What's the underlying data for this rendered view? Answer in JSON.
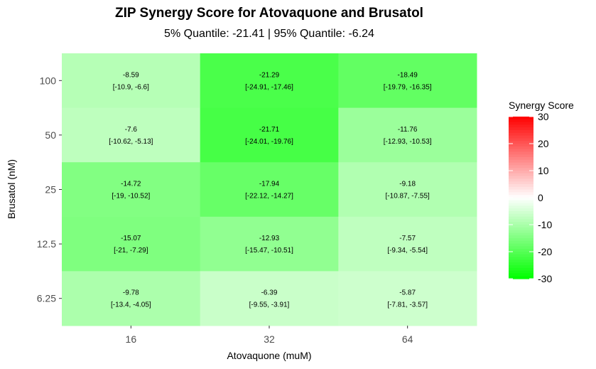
{
  "chart_data": {
    "type": "heatmap",
    "title": "ZIP Synergy Score for Atovaquone and Brusatol",
    "subtitle": "5% Quantile: -21.41 | 95% Quantile: -6.24",
    "xlabel": "Atovaquone (muM)",
    "ylabel": "Brusatol (nM)",
    "x_categories": [
      "16",
      "32",
      "64"
    ],
    "y_categories": [
      "100",
      "50",
      "25",
      "12.5",
      "6.25"
    ],
    "cells": [
      {
        "x": "16",
        "y": "100",
        "value": -8.59,
        "value_label": "-8.59",
        "ci_label": "[-10.9, -6.6]"
      },
      {
        "x": "32",
        "y": "100",
        "value": -21.29,
        "value_label": "-21.29",
        "ci_label": "[-24.91, -17.46]"
      },
      {
        "x": "64",
        "y": "100",
        "value": -18.49,
        "value_label": "-18.49",
        "ci_label": "[-19.79, -16.35]"
      },
      {
        "x": "16",
        "y": "50",
        "value": -7.6,
        "value_label": "-7.6",
        "ci_label": "[-10.62, -5.13]"
      },
      {
        "x": "32",
        "y": "50",
        "value": -21.71,
        "value_label": "-21.71",
        "ci_label": "[-24.01, -19.76]"
      },
      {
        "x": "64",
        "y": "50",
        "value": -11.76,
        "value_label": "-11.76",
        "ci_label": "[-12.93, -10.53]"
      },
      {
        "x": "16",
        "y": "25",
        "value": -14.72,
        "value_label": "-14.72",
        "ci_label": "[-19, -10.52]"
      },
      {
        "x": "32",
        "y": "25",
        "value": -17.94,
        "value_label": "-17.94",
        "ci_label": "[-22.12, -14.27]"
      },
      {
        "x": "64",
        "y": "25",
        "value": -9.18,
        "value_label": "-9.18",
        "ci_label": "[-10.87, -7.55]"
      },
      {
        "x": "16",
        "y": "12.5",
        "value": -15.07,
        "value_label": "-15.07",
        "ci_label": "[-21, -7.29]"
      },
      {
        "x": "32",
        "y": "12.5",
        "value": -12.93,
        "value_label": "-12.93",
        "ci_label": "[-15.47, -10.51]"
      },
      {
        "x": "64",
        "y": "12.5",
        "value": -7.57,
        "value_label": "-7.57",
        "ci_label": "[-9.34, -5.54]"
      },
      {
        "x": "16",
        "y": "6.25",
        "value": -9.78,
        "value_label": "-9.78",
        "ci_label": "[-13.4, -4.05]"
      },
      {
        "x": "32",
        "y": "6.25",
        "value": -6.39,
        "value_label": "-6.39",
        "ci_label": "[-9.55, -3.91]"
      },
      {
        "x": "64",
        "y": "6.25",
        "value": -5.87,
        "value_label": "-5.87",
        "ci_label": "[-7.81, -3.57]"
      }
    ],
    "legend": {
      "title": "Synergy Score",
      "placement": "right",
      "range": [
        -30,
        30
      ],
      "ticks": [
        "30",
        "20",
        "10",
        "0",
        "-10",
        "-20",
        "-30"
      ],
      "colors": {
        "high": "#ff0000",
        "mid": "#ffffff",
        "low": "#00ff00"
      }
    },
    "grid": false
  }
}
